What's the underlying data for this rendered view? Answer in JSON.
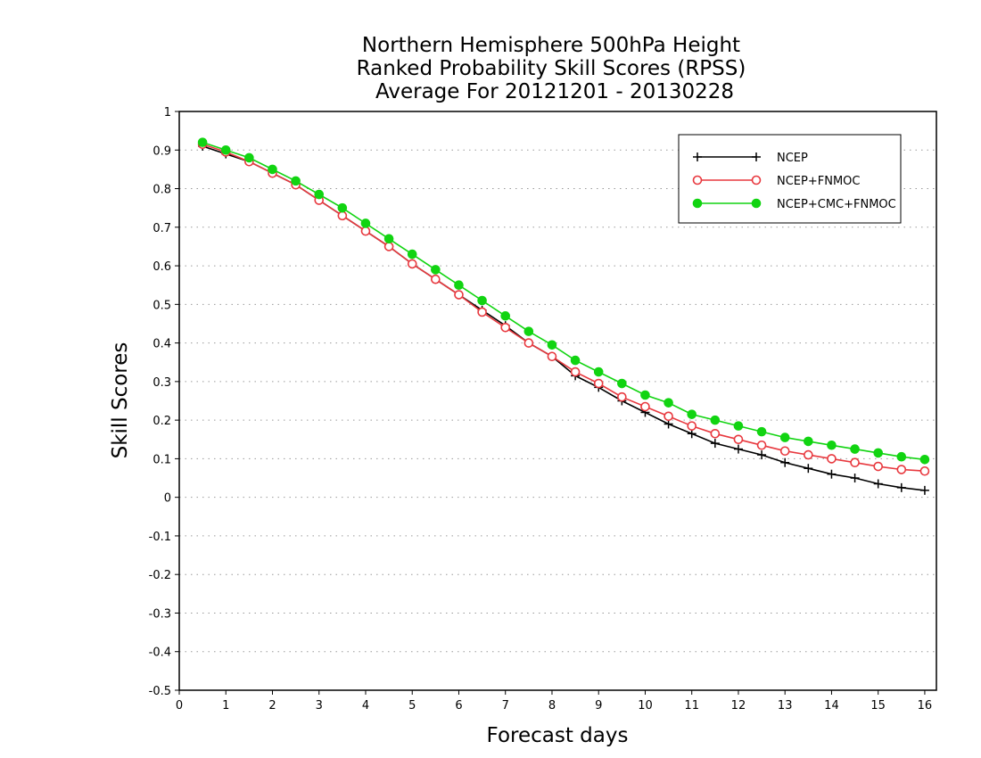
{
  "chart_data": {
    "type": "line",
    "title_lines": [
      "Northern Hemisphere 500hPa Height",
      "Ranked Probability Skill Scores (RPSS)",
      "Average For 20121201 - 20130228"
    ],
    "xlabel": "Forecast days",
    "ylabel": "Skill Scores",
    "xlim": [
      0,
      16.25
    ],
    "ylim": [
      -0.5,
      1
    ],
    "xticks": [
      "0",
      "1",
      "2",
      "3",
      "4",
      "5",
      "6",
      "7",
      "8",
      "9",
      "10",
      "11",
      "12",
      "13",
      "14",
      "15",
      "16"
    ],
    "yticks": [
      "1",
      "0.9",
      "0.8",
      "0.7",
      "0.6",
      "0.5",
      "0.4",
      "0.3",
      "0.2",
      "0.1",
      "0",
      "-0.1",
      "-0.2",
      "-0.3",
      "-0.4",
      "-0.5"
    ],
    "grid": "horizontal dotted",
    "legend_position": "top-right",
    "x": [
      0.5,
      1,
      1.5,
      2,
      2.5,
      3,
      3.5,
      4,
      4.5,
      5,
      5.5,
      6,
      6.5,
      7,
      7.5,
      8,
      8.5,
      9,
      9.5,
      10,
      10.5,
      11,
      11.5,
      12,
      12.5,
      13,
      13.5,
      14,
      14.5,
      15,
      15.5,
      16
    ],
    "series": [
      {
        "name": "NCEP",
        "color": "#000000",
        "marker": "plus",
        "values": [
          0.91,
          0.89,
          0.87,
          0.84,
          0.81,
          0.77,
          0.73,
          0.69,
          0.65,
          0.605,
          0.565,
          0.525,
          0.485,
          0.445,
          0.4,
          0.365,
          0.315,
          0.285,
          0.25,
          0.22,
          0.19,
          0.165,
          0.14,
          0.125,
          0.11,
          0.09,
          0.075,
          0.06,
          0.05,
          0.035,
          0.025,
          0.018
        ]
      },
      {
        "name": "NCEP+FNMOC",
        "color": "#e8393f",
        "marker": "open-circle",
        "values": [
          0.915,
          0.895,
          0.87,
          0.84,
          0.81,
          0.77,
          0.73,
          0.69,
          0.65,
          0.605,
          0.565,
          0.525,
          0.48,
          0.44,
          0.4,
          0.365,
          0.325,
          0.295,
          0.26,
          0.235,
          0.21,
          0.185,
          0.165,
          0.15,
          0.135,
          0.12,
          0.11,
          0.1,
          0.09,
          0.08,
          0.072,
          0.068
        ]
      },
      {
        "name": "NCEP+CMC+FNMOC",
        "color": "#11d411",
        "marker": "filled-circle",
        "values": [
          0.92,
          0.9,
          0.88,
          0.85,
          0.82,
          0.785,
          0.75,
          0.71,
          0.67,
          0.63,
          0.59,
          0.55,
          0.51,
          0.47,
          0.43,
          0.395,
          0.355,
          0.325,
          0.295,
          0.265,
          0.245,
          0.215,
          0.2,
          0.185,
          0.17,
          0.155,
          0.145,
          0.135,
          0.125,
          0.115,
          0.105,
          0.098
        ]
      }
    ]
  }
}
